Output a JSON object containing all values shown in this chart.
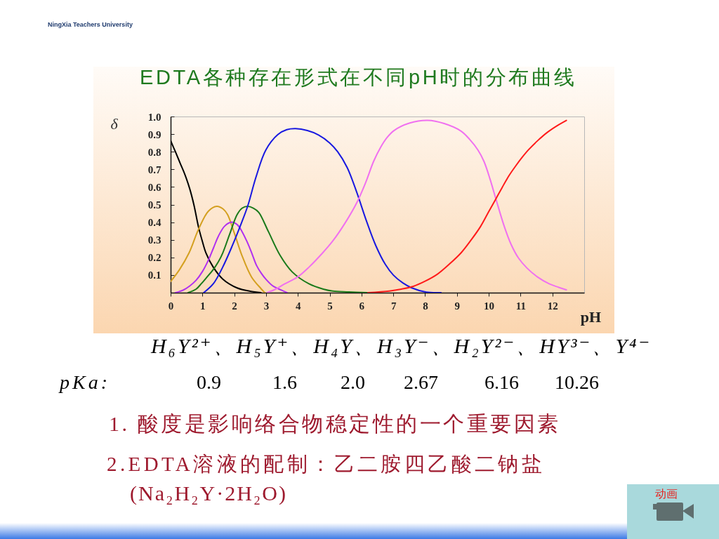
{
  "chart_data": {
    "type": "line",
    "title": "EDTA各种存在形式在不同pH时的分布曲线",
    "xlabel": "pH",
    "ylabel": "δ",
    "xlim": [
      0,
      13
    ],
    "xticks": [
      0,
      1,
      2,
      3,
      4,
      5,
      6,
      7,
      8,
      9,
      10,
      11,
      12
    ],
    "ylim": [
      0,
      1
    ],
    "yticks": [
      0.1,
      0.2,
      0.3,
      0.4,
      0.5,
      0.6,
      0.7,
      0.8,
      0.9,
      {
        "value": 1,
        "label": "1.0"
      }
    ],
    "series": [
      {
        "color": "#000000",
        "x": [
          0,
          0.15,
          0.3,
          0.45,
          0.6,
          0.73,
          0.88,
          1.0,
          1.11,
          1.34,
          1.64,
          2.09,
          2.5,
          2.84
        ],
        "values": [
          0.863,
          0.8,
          0.735,
          0.67,
          0.59,
          0.5,
          0.37,
          0.29,
          0.226,
          0.145,
          0.077,
          0.027,
          0.008,
          0
        ]
      },
      {
        "color": "#d4a020",
        "x": [
          0,
          0.28,
          0.58,
          0.88,
          1.19,
          1.45,
          1.65,
          1.79,
          2.01,
          2.24,
          2.54,
          2.84,
          2.96
        ],
        "values": [
          0.063,
          0.131,
          0.226,
          0.361,
          0.463,
          0.49,
          0.475,
          0.443,
          0.334,
          0.212,
          0.09,
          0.023,
          0
        ]
      },
      {
        "color": "#b030f0",
        "x": [
          0.15,
          0.4,
          0.6,
          0.8,
          1.0,
          1.2,
          1.35,
          1.5,
          1.7,
          1.92,
          2.1,
          2.25,
          2.4,
          2.55,
          2.7,
          2.85,
          3.0,
          3.2,
          3.37,
          3.66
        ],
        "values": [
          0,
          0.015,
          0.038,
          0.07,
          0.12,
          0.19,
          0.255,
          0.32,
          0.378,
          0.4,
          0.385,
          0.345,
          0.29,
          0.225,
          0.155,
          0.11,
          0.075,
          0.04,
          0.023,
          0
        ]
      },
      {
        "color": "#1a7a1a",
        "x": [
          0.55,
          0.8,
          0.96,
          1.15,
          1.34,
          1.5,
          1.64,
          1.86,
          2.09,
          2.25,
          2.42,
          2.6,
          2.77,
          3.07,
          3.44,
          3.82,
          4.35,
          4.8,
          5.1,
          5.6,
          6.2
        ],
        "values": [
          0,
          0.02,
          0.05,
          0.09,
          0.131,
          0.175,
          0.226,
          0.334,
          0.443,
          0.48,
          0.49,
          0.48,
          0.456,
          0.348,
          0.212,
          0.118,
          0.05,
          0.02,
          0.009,
          0.004,
          0
        ]
      },
      {
        "color": "#1818e0",
        "x": [
          1.04,
          1.34,
          1.64,
          1.94,
          2.24,
          2.42,
          2.69,
          2.99,
          3.37,
          3.65,
          3.93,
          4.3,
          4.65,
          5.0,
          5.25,
          5.55,
          5.85,
          6.15,
          6.45,
          6.75,
          7.0,
          7.3,
          7.57,
          8.04,
          8.5
        ],
        "values": [
          0,
          0.05,
          0.146,
          0.267,
          0.402,
          0.49,
          0.66,
          0.809,
          0.897,
          0.925,
          0.931,
          0.92,
          0.895,
          0.85,
          0.8,
          0.71,
          0.57,
          0.41,
          0.267,
          0.16,
          0.1,
          0.055,
          0.028,
          0.003,
          0
        ]
      },
      {
        "color": "#f070f0",
        "x": [
          3.03,
          3.3,
          3.59,
          4.0,
          4.35,
          4.75,
          5.1,
          5.5,
          5.85,
          6.12,
          6.38,
          6.6,
          6.8,
          7.02,
          7.5,
          8.08,
          8.6,
          9.13,
          9.4,
          9.66,
          9.85,
          10.04,
          10.22,
          10.49,
          10.7,
          10.94,
          11.2,
          11.54,
          11.9,
          12.2,
          12.44
        ],
        "values": [
          0,
          0.02,
          0.05,
          0.09,
          0.145,
          0.22,
          0.294,
          0.4,
          0.51,
          0.62,
          0.745,
          0.825,
          0.88,
          0.92,
          0.962,
          0.978,
          0.96,
          0.917,
          0.87,
          0.81,
          0.745,
          0.645,
          0.535,
          0.375,
          0.275,
          0.195,
          0.14,
          0.088,
          0.05,
          0.03,
          0.016
        ]
      },
      {
        "color": "#ff1a1a",
        "x": [
          6.2,
          6.87,
          7.25,
          7.63,
          8.0,
          8.38,
          8.75,
          9.13,
          9.45,
          9.74,
          10.0,
          10.22,
          10.43,
          10.64,
          10.85,
          11.05,
          11.24,
          11.55,
          11.84,
          12.15,
          12.44
        ],
        "values": [
          0,
          0.009,
          0.02,
          0.036,
          0.065,
          0.104,
          0.16,
          0.226,
          0.3,
          0.375,
          0.46,
          0.531,
          0.6,
          0.665,
          0.72,
          0.768,
          0.809,
          0.865,
          0.91,
          0.948,
          0.978
        ]
      }
    ],
    "annotations": [
      "NingXia Teachers University",
      "H₆Y²⁺、H₅Y⁺、H₄Y、H₃Y⁻、H₂Y²⁻、HY³⁻、Y⁴⁻",
      "pKa:",
      "0.9",
      "1.6",
      "2.0",
      "2.67",
      "6.16",
      "10.26",
      "1. 酸度是影响络合物稳定性的一个重要因素",
      "2.EDTA溶液的配制：乙二胺四乙酸二钠盐",
      "(Na₂H₂Y·2H₂O)",
      "动画"
    ]
  }
}
